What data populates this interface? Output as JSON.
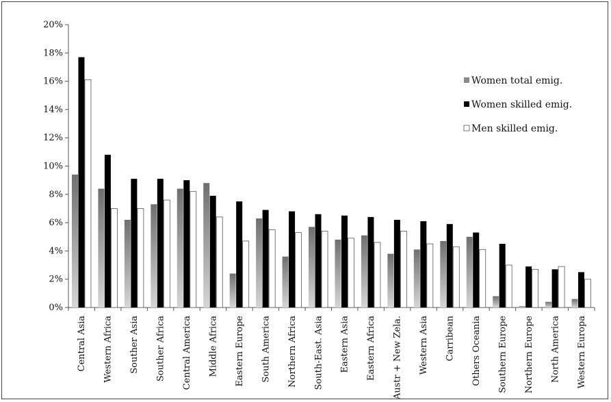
{
  "chart_data": {
    "type": "bar",
    "title": "",
    "xlabel": "",
    "ylabel": "",
    "ylim": [
      0,
      20
    ],
    "y_ticks": [
      "0%",
      "2%",
      "4%",
      "6%",
      "8%",
      "10%",
      "12%",
      "14%",
      "16%",
      "18%",
      "20%"
    ],
    "y_tick_values": [
      0,
      2,
      4,
      6,
      8,
      10,
      12,
      14,
      16,
      18,
      20
    ],
    "grid": false,
    "legend_position": "right",
    "categories": [
      "Central Asia",
      "Western Africa",
      "Souther Asia",
      "Souther Africa",
      "Central America",
      "Middle Africa",
      "Eastern Europe",
      "South America",
      "Northern Africa",
      "South-East. Asia",
      "Eastern Asia",
      "Eastern Africa",
      "Austr + New Zela.",
      "Western Asia",
      "Carribean",
      "Others Oceania",
      "Southern Europe",
      "Northern Europe",
      "North America",
      "Western Europa"
    ],
    "series": [
      {
        "name": "Women total emig.",
        "color": "#8a8a8a",
        "values": [
          9.4,
          8.4,
          6.2,
          7.3,
          8.4,
          8.8,
          2.4,
          6.3,
          3.6,
          5.7,
          4.8,
          5.1,
          3.8,
          4.1,
          4.7,
          5.0,
          0.8,
          0.1,
          0.4,
          0.6
        ]
      },
      {
        "name": "Women skilled emig.",
        "color": "#000000",
        "values": [
          17.7,
          10.8,
          9.1,
          9.1,
          9.0,
          7.9,
          7.5,
          6.9,
          6.8,
          6.6,
          6.5,
          6.4,
          6.2,
          6.1,
          5.9,
          5.3,
          4.5,
          2.9,
          2.7,
          2.5
        ]
      },
      {
        "name": "Men skilled emig.",
        "color": "#ffffff",
        "values": [
          16.1,
          7.0,
          7.0,
          7.6,
          8.2,
          6.4,
          4.7,
          5.5,
          5.3,
          5.4,
          4.9,
          4.6,
          5.4,
          4.5,
          4.3,
          4.1,
          3.0,
          2.7,
          2.9,
          2.0
        ]
      }
    ]
  }
}
